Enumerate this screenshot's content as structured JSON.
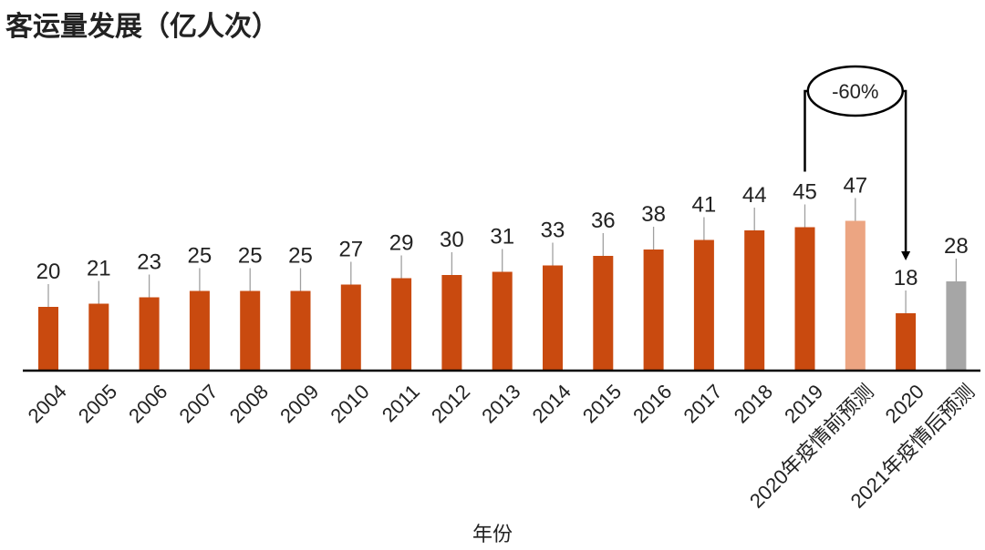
{
  "title": "客运量发展（亿人次）",
  "chart_data": {
    "type": "bar",
    "title": "客运量发展（亿人次）",
    "xlabel": "年份",
    "ylabel": "",
    "categories": [
      "2004",
      "2005",
      "2006",
      "2007",
      "2008",
      "2009",
      "2010",
      "2011",
      "2012",
      "2013",
      "2014",
      "2015",
      "2016",
      "2017",
      "2018",
      "2019",
      "2020年疫情前预测",
      "2020",
      "2021年疫情后预测"
    ],
    "values": [
      20,
      21,
      23,
      25,
      25,
      25,
      27,
      29,
      30,
      31,
      33,
      36,
      38,
      41,
      44,
      45,
      47,
      18,
      28
    ],
    "bar_colors": [
      "#c94a0f",
      "#c94a0f",
      "#c94a0f",
      "#c94a0f",
      "#c94a0f",
      "#c94a0f",
      "#c94a0f",
      "#c94a0f",
      "#c94a0f",
      "#c94a0f",
      "#c94a0f",
      "#c94a0f",
      "#c94a0f",
      "#c94a0f",
      "#c94a0f",
      "#c94a0f",
      "#eca582",
      "#c94a0f",
      "#a6a6a6"
    ],
    "annotation": {
      "text": "-60%",
      "from": "2019",
      "to": "2020"
    },
    "grid": false,
    "legend": "none"
  },
  "colors": {
    "actual": "#c94a0f",
    "forecast_pre": "#eca582",
    "forecast_post": "#a6a6a6",
    "text": "#222222",
    "leader": "#a0a0a0",
    "axis": "#000000"
  }
}
